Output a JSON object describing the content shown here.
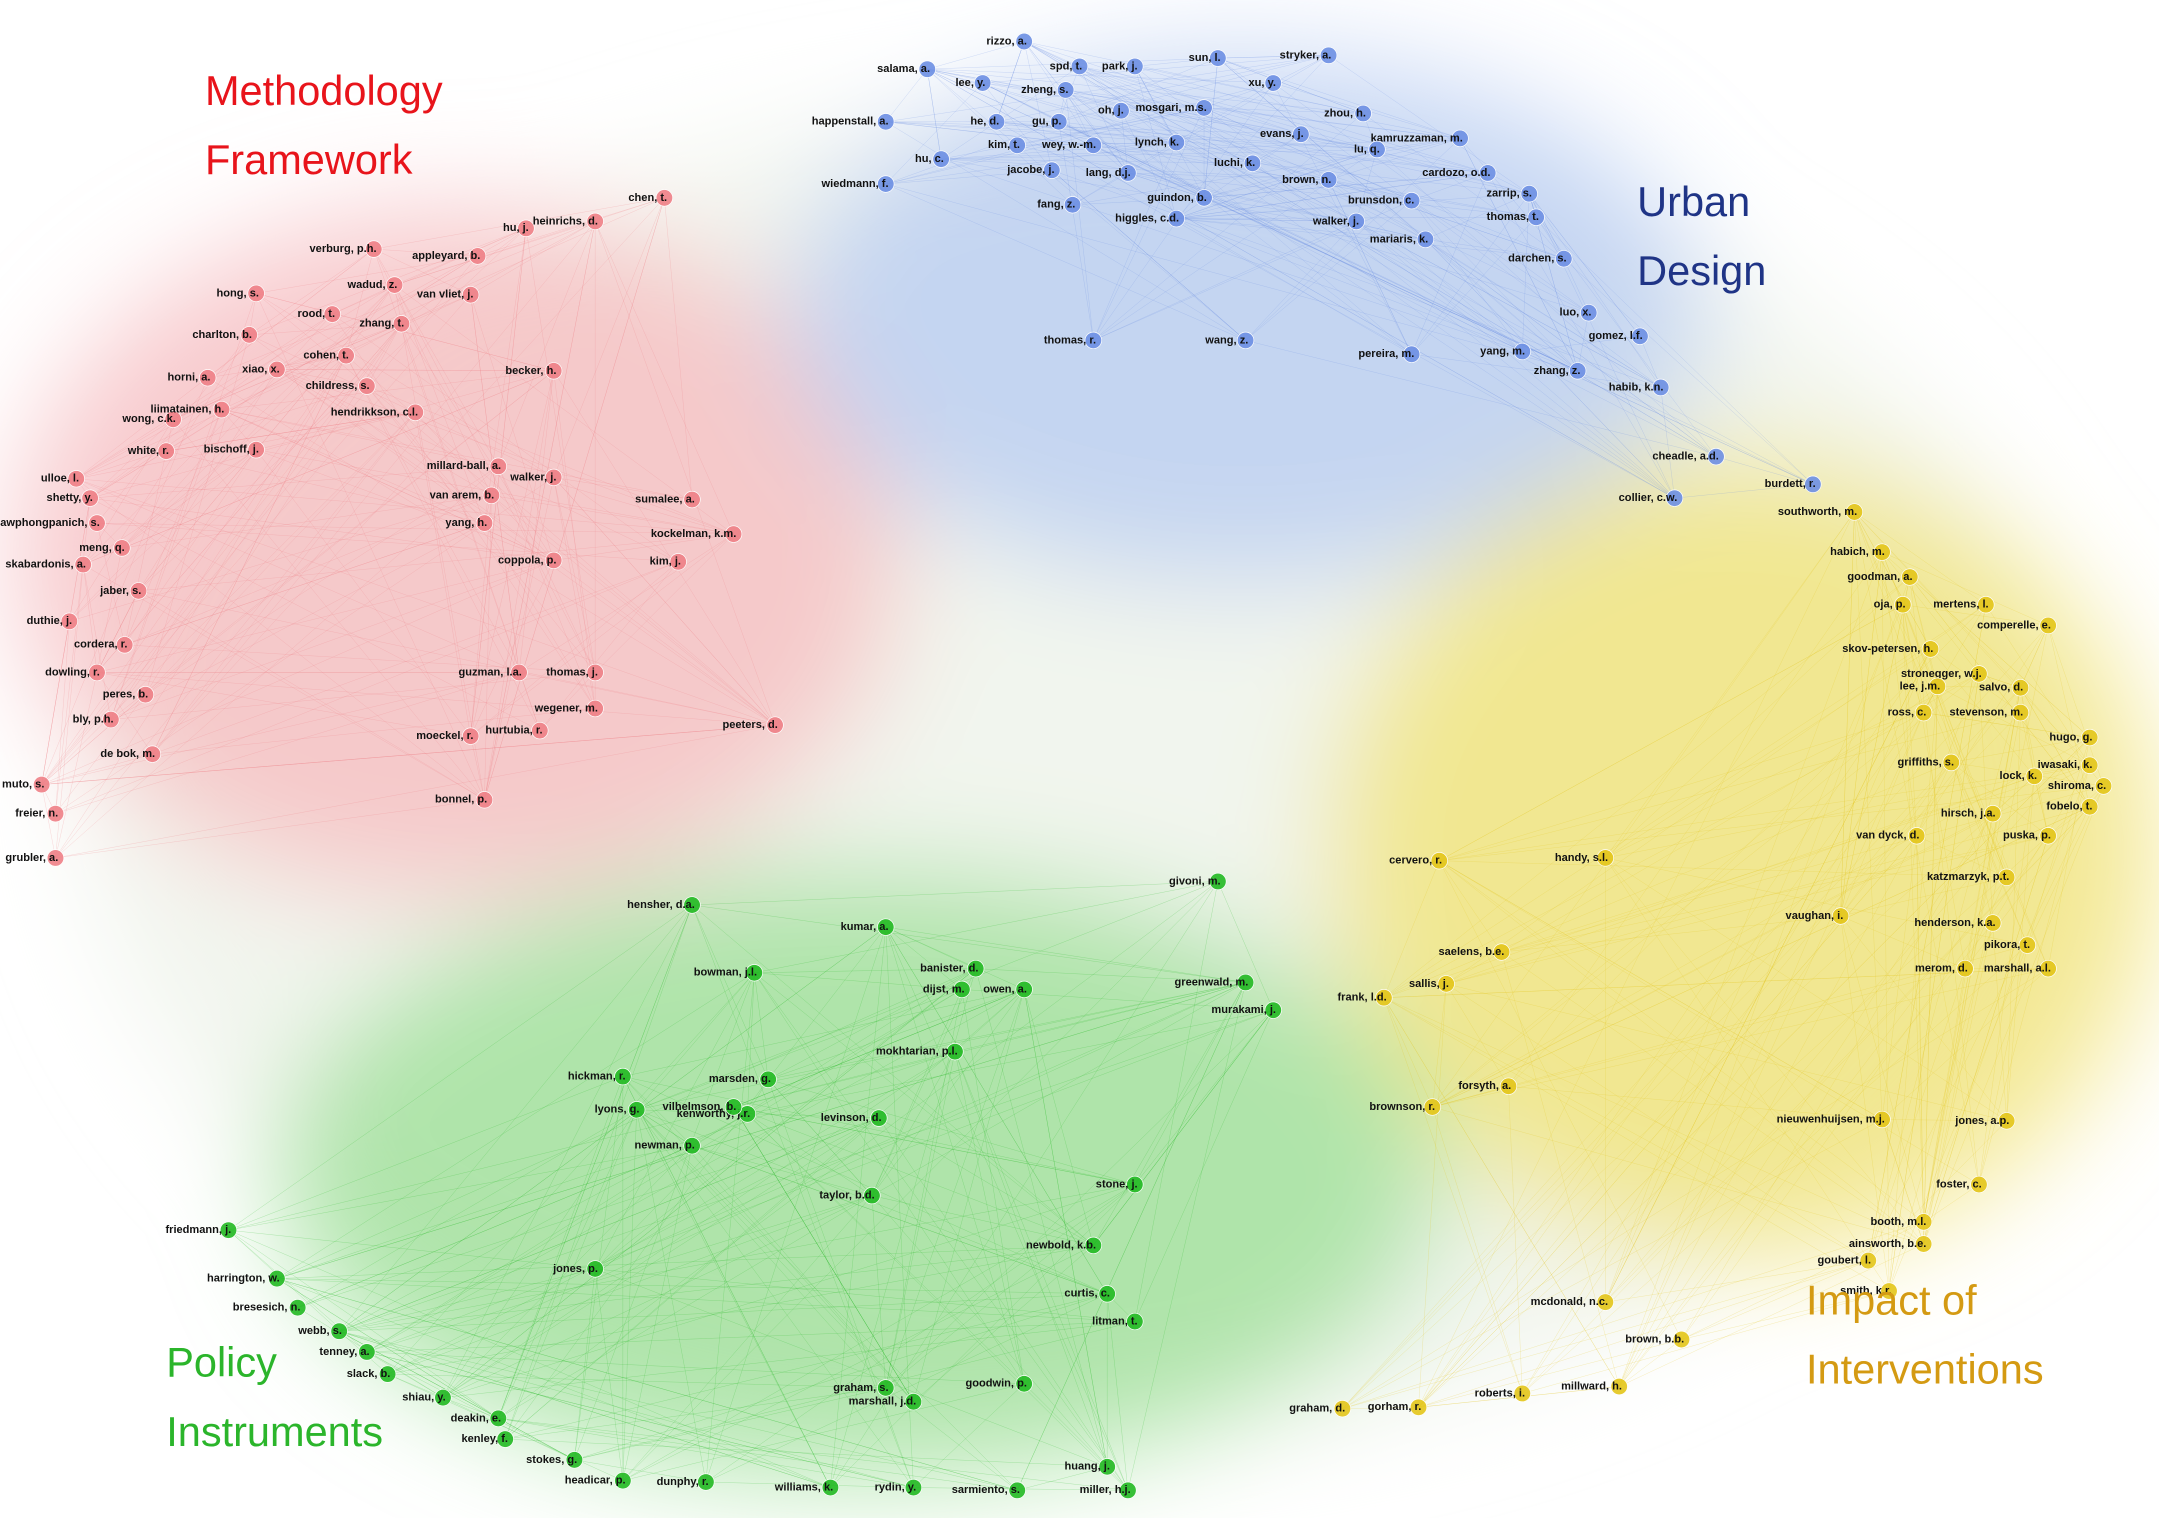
{
  "clusters": [
    {
      "title": [
        "Methodology",
        "Framework"
      ],
      "title_color": "#e8141b",
      "color": "#ee7f86",
      "nodes": [
        "chen, t.",
        "hu, j.",
        "heinrichs, d.",
        "verburg, p.h.",
        "appleyard, b.",
        "hong, s.",
        "wadud, z.",
        "van vliet, j.",
        "charlton, b.",
        "rood, t.",
        "zhang, t.",
        "cohen, t.",
        "xiao, x.",
        "horni, a.",
        "childress, s.",
        "wong, c.k.",
        "liimatainen, h.",
        "hendrikkson, c.l.",
        "white, r.",
        "bischoff, j.",
        "ulloe, l.",
        "shetty, y.",
        "lawphongpanich, s.",
        "skabardonis, a.",
        "meng, q.",
        "jaber, s.",
        "duthie, j.",
        "cordera, r.",
        "dowling, r.",
        "peres, b.",
        "bly, p.h.",
        "de bok, m.",
        "muto, s.",
        "freier, n.",
        "grubler, a.",
        "kockelman, k.m.",
        "coppola, p.",
        "van arem, b.",
        "yang, h.",
        "millard-ball, a.",
        "walker, j.",
        "becker, h.",
        "sumalee, a.",
        "kim, j.",
        "peeters, d.",
        "moeckel, r.",
        "bonnel, p.",
        "guzman, l.a.",
        "thomas, j.",
        "wegener, m.",
        "hurtubia, r."
      ]
    },
    {
      "title": [
        "Urban",
        "Design"
      ],
      "title_color": "#1f3486",
      "color": "#6d8fe3",
      "nodes": [
        "rizzo, a.",
        "salama, a.",
        "spd, t.",
        "park, j.",
        "sun, l.",
        "stryker, a.",
        "lee, y.",
        "zheng, s.",
        "xu, y.",
        "happenstall, a.",
        "he, d.",
        "gu, p.",
        "oh, j.",
        "mosgari, m.s.",
        "zhou, h.",
        "kim, t.",
        "wey, w.-m.",
        "lynch, k.",
        "evans, j.",
        "kamruzzaman, m.",
        "lu, q.",
        "hu, c.",
        "jacobe, j.",
        "luchi, k.",
        "lang, d.j.",
        "wiedmann, f.",
        "brown, n.",
        "cardozo, o.d.",
        "fang, z.",
        "higgles, c.d.",
        "guindon, b.",
        "brunsdon, c.",
        "zarrip, s.",
        "walker, j.",
        "thomas, t.",
        "mariaris, k.",
        "darchen, s.",
        "luo, x.",
        "gomez, l.f.",
        "habib, k.n.",
        "zhang, z.",
        "yang, m.",
        "pereira, m.",
        "burdett, r.",
        "cheadle, a.d.",
        "collier, c.w.",
        "thomas, r.",
        "wang, z."
      ]
    },
    {
      "title": [
        "Impact of",
        "Interventions"
      ],
      "title_color": "#d49a12",
      "color": "#e3c51a",
      "nodes": [
        "southworth, m.",
        "habich, m.",
        "goodman, a.",
        "mertens, l.",
        "oja, p.",
        "comperelle, e.",
        "skov-petersen, h.",
        "stronegger, w.j.",
        "lee, j.m.",
        "salvo, d.",
        "ross, c.",
        "stevenson, m.",
        "hugo, g.",
        "iwasaki, k.",
        "griffiths, s.",
        "lock, k.",
        "shiroma, c.",
        "hirsch, j.a.",
        "fobelo, t.",
        "puska, p.",
        "van dyck, d.",
        "katzmarzyk, p.t.",
        "henderson, k.a.",
        "vaughan, i.",
        "pikora, t.",
        "merom, d.",
        "marshall, a.l.",
        "brownson, r.",
        "forsyth, a.",
        "nieuwenhuijsen, m.j.",
        "jones, a.p.",
        "sallis, j.",
        "frank, l.d.",
        "cervero, r.",
        "handy, s.l.",
        "saelens, b.e.",
        "foster, c.",
        "booth, m.l.",
        "ainsworth, b.e.",
        "goubert, l.",
        "smith, k.r.",
        "mcdonald, n.c.",
        "millward, h.",
        "roberts, i.",
        "brown, b.b.",
        "gorham, r.",
        "graham, d."
      ]
    },
    {
      "title": [
        "Policy",
        "Instruments"
      ],
      "title_color": "#2bb52b",
      "color": "#22b922",
      "nodes": [
        "harrington, w.",
        "friedmann, j.",
        "bresesich, n.",
        "webb, s.",
        "tenney, a.",
        "slack, b.",
        "shiau, y.",
        "deakin, e.",
        "kenley, f.",
        "stokes, g.",
        "headicar, p.",
        "dunphy, r.",
        "williams, k.",
        "rydin, y.",
        "sarmiento, s.",
        "miller, h.j.",
        "huang, j.",
        "banister, d.",
        "hensher, d.a.",
        "kumar, a.",
        "newman, p.",
        "kenworthy, j.r.",
        "graham, s.",
        "goodwin, p.",
        "litman, t.",
        "givoni, m.",
        "greenwald, m.",
        "murakami, j.",
        "hickman, r.",
        "marsden, g.",
        "vilhelmson, b.",
        "levinson, d.",
        "stone, j.",
        "curtis, c.",
        "newbold, k.b.",
        "taylor, b.d.",
        "lyons, g.",
        "mokhtarian, p.l.",
        "bowman, j.l.",
        "owen, a.",
        "dijst, m.",
        "jones, p.",
        "marshall, j.d."
      ]
    }
  ]
}
